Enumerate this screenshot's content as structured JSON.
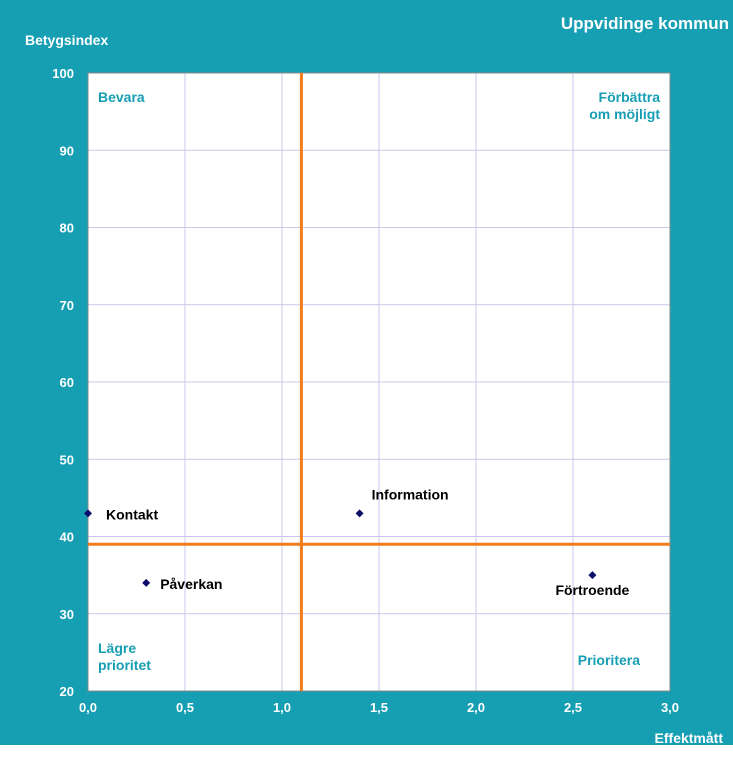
{
  "chart_data": {
    "type": "scatter",
    "title": "Uppvidinge kommun",
    "xlabel": "Effektmått",
    "ylabel": "Betygsindex",
    "xlim": [
      0,
      3
    ],
    "ylim": [
      20,
      100
    ],
    "x_ticks": [
      "0,0",
      "0,5",
      "1,0",
      "1,5",
      "2,0",
      "2,5",
      "3,0"
    ],
    "x_tick_values": [
      0,
      0.5,
      1.0,
      1.5,
      2.0,
      2.5,
      3.0
    ],
    "y_ticks": [
      "20",
      "30",
      "40",
      "50",
      "60",
      "70",
      "80",
      "90",
      "100"
    ],
    "y_tick_values": [
      20,
      30,
      40,
      50,
      60,
      70,
      80,
      90,
      100
    ],
    "grid": true,
    "reference_lines": {
      "x": 1.1,
      "y": 39
    },
    "points": [
      {
        "label": "Kontakt",
        "x": 0.0,
        "y": 43
      },
      {
        "label": "Påverkan",
        "x": 0.3,
        "y": 34
      },
      {
        "label": "Information",
        "x": 1.4,
        "y": 43
      },
      {
        "label": "Förtroende",
        "x": 2.6,
        "y": 35
      }
    ],
    "quadrant_labels": {
      "top_left": "Bevara",
      "top_right": [
        "Förbättra",
        "om möjligt"
      ],
      "bottom_left": [
        "Lägre",
        "prioritet"
      ],
      "bottom_right": "Prioritera"
    },
    "colors": {
      "frame": "#169eb3",
      "reference_line": "#f07d1a",
      "marker": "#0d0d6b",
      "grid": "#c8c8ec"
    }
  }
}
